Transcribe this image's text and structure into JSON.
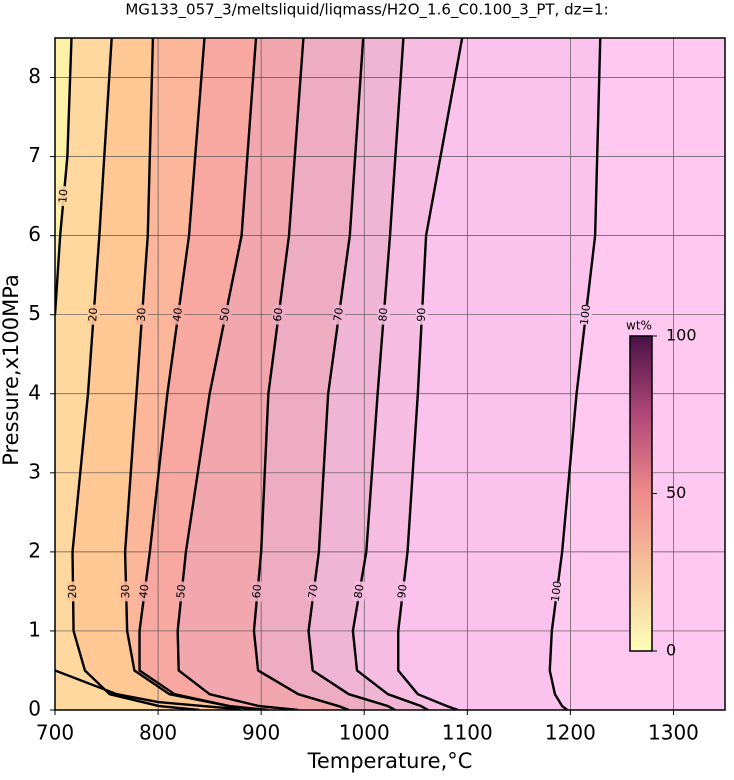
{
  "chart_data": {
    "type": "contour",
    "title": "MG133_057_3/meltsliquid/liqmass/H2O_1.6_C0.100_3_PT, dz=1:",
    "x_label": "Temperature,°C",
    "y_label": "Pressure,x100MPa",
    "xlim": [
      700,
      1350
    ],
    "xticks": [
      700,
      800,
      900,
      1000,
      1100,
      1200,
      1300
    ],
    "ylim": [
      0,
      8.5
    ],
    "yticks": [
      0,
      1,
      2,
      3,
      4,
      5,
      6,
      7,
      8
    ],
    "grid": true,
    "fill_colors": [
      "#fff0a8",
      "#ffd8a0",
      "#ffc894",
      "#fcb69a",
      "#f8a8a0",
      "#f2a6ae",
      "#eeacc2",
      "#f0b4d4",
      "#f6bce2",
      "#fac2ec",
      "#ffc8f0"
    ],
    "series": [
      {
        "name": "10",
        "color": "#000000",
        "x": [
          716,
          712,
          705,
          700,
          null,
          700,
          760,
          800,
          870,
          880
        ],
        "y": [
          8.5,
          7,
          6,
          5,
          null,
          0.5,
          0.2,
          0.1,
          0.02,
          0
        ]
      },
      {
        "name": "20",
        "color": "#000000",
        "x": [
          755,
          743,
          732,
          717,
          718,
          729,
          753,
          801,
          840
        ],
        "y": [
          8.5,
          6,
          4,
          2,
          1,
          0.5,
          0.2,
          0.05,
          0
        ]
      },
      {
        "name": "30",
        "color": "#000000",
        "x": [
          795,
          790,
          779,
          768,
          770,
          777,
          811,
          869,
          898
        ],
        "y": [
          8.5,
          6,
          4,
          2,
          1,
          0.5,
          0.2,
          0.05,
          0
        ]
      },
      {
        "name": "40",
        "color": "#000000",
        "x": [
          845,
          830,
          809,
          792,
          782,
          782,
          816,
          869,
          907
        ],
        "y": [
          8.5,
          6,
          4,
          2,
          1,
          0.5,
          0.2,
          0.05,
          0
        ]
      },
      {
        "name": "50",
        "color": "#000000",
        "x": [
          895,
          881,
          850,
          827,
          819,
          820,
          850,
          898,
          936
        ],
        "y": [
          8.5,
          6,
          4,
          2,
          1,
          0.5,
          0.2,
          0.05,
          0
        ]
      },
      {
        "name": "60",
        "color": "#000000",
        "x": [
          941,
          927,
          907,
          900,
          893,
          897,
          936,
          975,
          985
        ],
        "y": [
          8.5,
          6,
          4,
          2,
          1,
          0.5,
          0.2,
          0.05,
          0
        ]
      },
      {
        "name": "70",
        "color": "#000000",
        "x": [
          999,
          986,
          965,
          956,
          946,
          950,
          985,
          1023,
          1030
        ],
        "y": [
          8.5,
          6,
          4,
          2,
          1,
          0.5,
          0.2,
          0.05,
          0
        ]
      },
      {
        "name": "80",
        "color": "#000000",
        "x": [
          1038,
          1025,
          1013,
          1002,
          989,
          993,
          1023,
          1055,
          1062
        ],
        "y": [
          8.5,
          6,
          4,
          2,
          1,
          0.5,
          0.2,
          0.05,
          0
        ]
      },
      {
        "name": "90",
        "color": "#000000",
        "x": [
          1095,
          1060,
          1052,
          1042,
          1033,
          1033,
          1052,
          1080,
          1091
        ],
        "y": [
          8.5,
          6,
          4,
          2,
          1,
          0.5,
          0.2,
          0.05,
          0
        ]
      },
      {
        "name": "100",
        "color": "#000000",
        "x": [
          1229,
          1224,
          1206,
          1192,
          1182,
          1180,
          1185,
          1192,
          1197
        ],
        "y": [
          8.5,
          6,
          4,
          2,
          1,
          0.5,
          0.2,
          0.05,
          0
        ]
      }
    ],
    "colorbar": {
      "label": "wt%",
      "lim": [
        0,
        100
      ],
      "ticks": [
        0,
        50,
        100
      ],
      "colors": [
        "#ffffb8",
        "#f5c49a",
        "#ee8a8a",
        "#b04878",
        "#4a1046"
      ]
    }
  }
}
